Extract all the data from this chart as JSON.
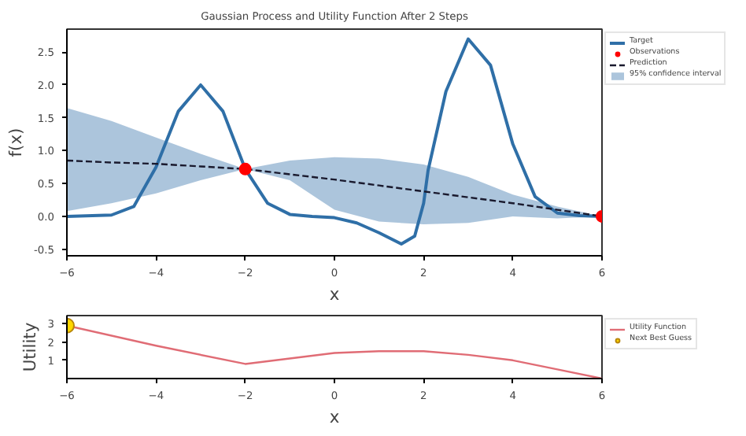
{
  "chart_data": [
    {
      "type": "line",
      "title": "Gaussian Process and Utility Function After 2 Steps",
      "xlabel": "x",
      "ylabel": "f(x)",
      "xlim": [
        -6,
        6
      ],
      "ylim": [
        -0.6,
        2.85
      ],
      "xticks": [
        -6,
        -4,
        -2,
        0,
        2,
        4,
        6
      ],
      "yticks": [
        {
          "value": -0.5,
          "label": "-0.5"
        },
        {
          "value": 0,
          "label": "0.0"
        },
        {
          "value": 0.5,
          "label": "0.5"
        },
        {
          "value": 1,
          "label": "1.0"
        },
        {
          "value": 1.5,
          "label": "1.5"
        },
        {
          "value": 2,
          "label": "2.0"
        },
        {
          "value": 2.5,
          "label": "2.5"
        }
      ],
      "grid": false,
      "legend": "top right",
      "annotations": [
        "95% confidence interval"
      ],
      "series": [
        {
          "name": "Target",
          "type": "line",
          "color": "#2f6fa7",
          "x": [
            -6,
            -5,
            -4.5,
            -4,
            -3.5,
            -3,
            -2.5,
            -2,
            -1.5,
            -1,
            -0.5,
            0,
            0.5,
            1,
            1.5,
            1.8,
            2,
            2.1,
            2.5,
            3,
            3.5,
            4,
            4.5,
            5,
            5.5,
            6
          ],
          "values": [
            0.0,
            0.02,
            0.15,
            0.75,
            1.6,
            2.0,
            1.6,
            0.72,
            0.2,
            0.03,
            0.0,
            -0.02,
            -0.1,
            -0.25,
            -0.42,
            -0.3,
            0.2,
            0.7,
            1.9,
            2.7,
            2.3,
            1.1,
            0.3,
            0.05,
            0.01,
            0.0
          ]
        },
        {
          "name": "Observations",
          "type": "scatter",
          "marker": "circle",
          "color": "#ff0000",
          "x": [
            -2,
            6
          ],
          "values": [
            0.72,
            0.0
          ]
        },
        {
          "name": "Prediction",
          "type": "line",
          "line_style": "dashed",
          "color": "#1a1a2e",
          "x": [
            -6,
            -5,
            -4,
            -3,
            -2,
            -1,
            0,
            1,
            2,
            3,
            4,
            5,
            6
          ],
          "values": [
            0.85,
            0.82,
            0.8,
            0.76,
            0.72,
            0.64,
            0.56,
            0.47,
            0.38,
            0.29,
            0.2,
            0.1,
            0.0
          ],
          "lower": [
            0.08,
            0.2,
            0.35,
            0.55,
            0.72,
            0.55,
            0.1,
            -0.08,
            -0.12,
            -0.1,
            0.0,
            -0.03,
            0.0
          ],
          "upper": [
            1.65,
            1.45,
            1.2,
            0.95,
            0.72,
            0.85,
            0.9,
            0.88,
            0.79,
            0.6,
            0.33,
            0.15,
            0.0
          ]
        }
      ]
    },
    {
      "type": "line",
      "xlabel": "x",
      "ylabel": "Utility",
      "xlim": [
        -6,
        6
      ],
      "ylim": [
        0,
        3.45
      ],
      "xticks": [
        -6,
        -4,
        -2,
        0,
        2,
        4,
        6
      ],
      "yticks": [
        1,
        2,
        3
      ],
      "grid": false,
      "legend": "top right",
      "series": [
        {
          "name": "Utility Function",
          "type": "line",
          "color": "#e06c75",
          "x": [
            -6,
            -4,
            -2,
            -1,
            0,
            1,
            2,
            3,
            4,
            5,
            6
          ],
          "values": [
            2.9,
            1.8,
            0.8,
            1.1,
            1.4,
            1.5,
            1.5,
            1.3,
            1.0,
            0.5,
            0.0
          ]
        },
        {
          "name": "Next Best Guess",
          "type": "scatter",
          "marker": "circle",
          "color": "#ffd700",
          "x": [
            -6
          ],
          "values": [
            2.9
          ]
        }
      ]
    }
  ]
}
